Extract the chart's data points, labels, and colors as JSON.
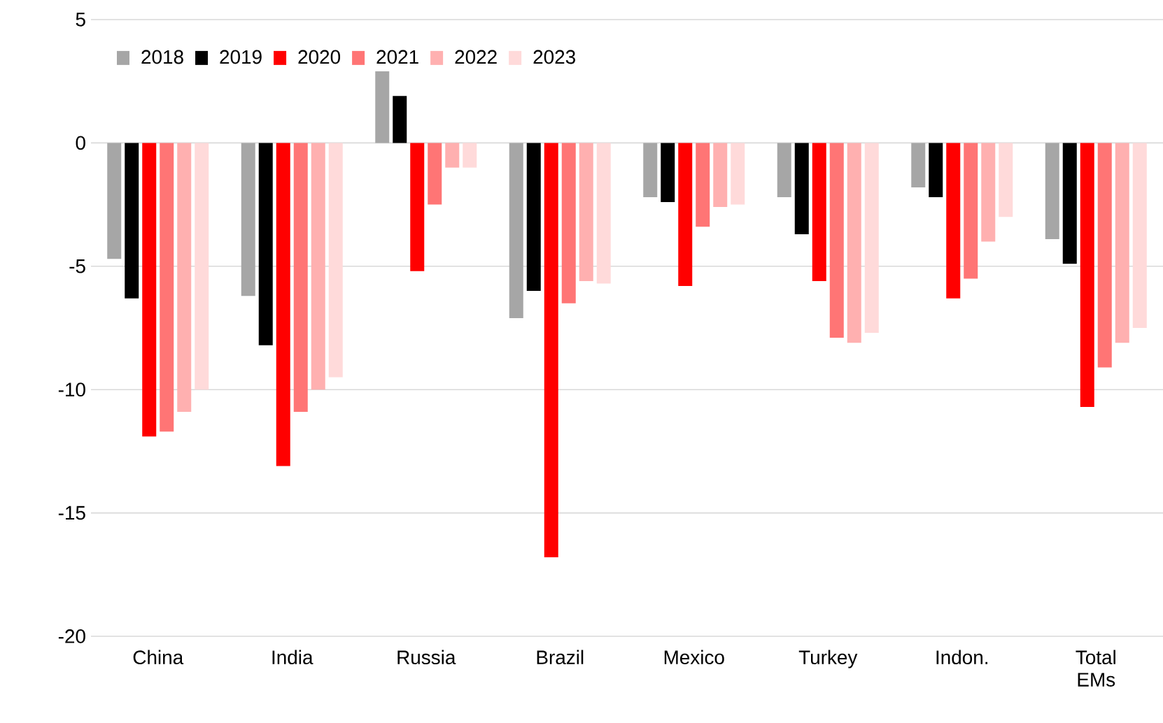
{
  "chart_data": {
    "type": "bar",
    "categories": [
      "China",
      "India",
      "Russia",
      "Brazil",
      "Mexico",
      "Turkey",
      "Indon.",
      "Total EMs"
    ],
    "series": [
      {
        "name": "2018",
        "color": "#a6a6a6",
        "values": [
          -4.7,
          -6.2,
          2.9,
          -7.1,
          -2.2,
          -2.2,
          -1.8,
          -3.9
        ]
      },
      {
        "name": "2019",
        "color": "#000000",
        "values": [
          -6.3,
          -8.2,
          1.9,
          -6.0,
          -2.4,
          -3.7,
          -2.2,
          -4.9
        ]
      },
      {
        "name": "2020",
        "color": "#ff0000",
        "values": [
          -11.9,
          -13.1,
          -5.2,
          -16.8,
          -5.8,
          -5.6,
          -6.3,
          -10.7
        ]
      },
      {
        "name": "2021",
        "color": "#ff7575",
        "values": [
          -11.7,
          -10.9,
          -2.5,
          -6.5,
          -3.4,
          -7.9,
          -5.5,
          -9.1
        ]
      },
      {
        "name": "2022",
        "color": "#ffb0b0",
        "values": [
          -10.9,
          -10.0,
          -1.0,
          -5.6,
          -2.6,
          -8.1,
          -4.0,
          -8.1
        ]
      },
      {
        "name": "2023",
        "color": "#ffdada",
        "values": [
          -10.0,
          -9.5,
          -1.0,
          -5.7,
          -2.5,
          -7.7,
          -3.0,
          -7.5
        ]
      }
    ],
    "ylim": [
      -20,
      5
    ],
    "yticks": [
      -20,
      -15,
      -10,
      -5,
      0,
      5
    ],
    "grid": "y",
    "legend": "top left"
  }
}
